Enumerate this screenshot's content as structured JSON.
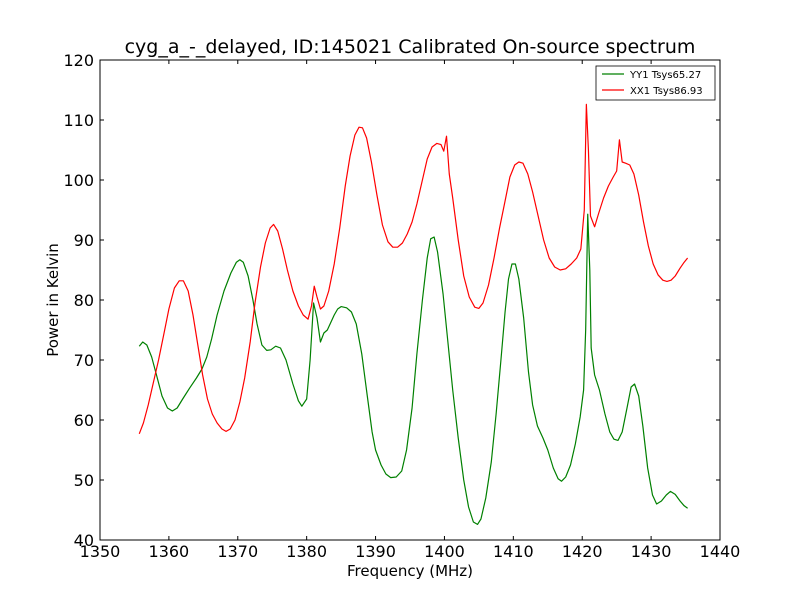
{
  "chart_data": {
    "type": "line",
    "title": "cyg_a_-_delayed, ID:145021 Calibrated On-source spectrum",
    "xlabel": "Frequency (MHz)",
    "ylabel": "Power in Kelvin",
    "xlim": [
      1350,
      1440
    ],
    "ylim": [
      40,
      120
    ],
    "xticks": [
      1350,
      1360,
      1370,
      1380,
      1390,
      1400,
      1410,
      1420,
      1430,
      1440
    ],
    "yticks": [
      40,
      50,
      60,
      70,
      80,
      90,
      100,
      110,
      120
    ],
    "legend_position": "top-right",
    "series": [
      {
        "name": "YY1 Tsys65.27",
        "color": "#008000",
        "points": [
          [
            1355.7,
            72.3
          ],
          [
            1356.2,
            73.0
          ],
          [
            1356.8,
            72.5
          ],
          [
            1357.5,
            70.5
          ],
          [
            1358.2,
            67.5
          ],
          [
            1359,
            64.0
          ],
          [
            1359.8,
            62.0
          ],
          [
            1360.5,
            61.5
          ],
          [
            1361.2,
            62.0
          ],
          [
            1362,
            63.5
          ],
          [
            1363,
            65.3
          ],
          [
            1364,
            67.0
          ],
          [
            1364.8,
            68.5
          ],
          [
            1365.5,
            70.5
          ],
          [
            1366.2,
            73.5
          ],
          [
            1367,
            77.5
          ],
          [
            1368,
            81.5
          ],
          [
            1369,
            84.5
          ],
          [
            1369.8,
            86.3
          ],
          [
            1370.3,
            86.7
          ],
          [
            1370.8,
            86.3
          ],
          [
            1371.5,
            84.0
          ],
          [
            1372.2,
            80.0
          ],
          [
            1372.8,
            76.0
          ],
          [
            1373.5,
            72.5
          ],
          [
            1374.2,
            71.6
          ],
          [
            1374.8,
            71.7
          ],
          [
            1375.5,
            72.3
          ],
          [
            1376.2,
            72.0
          ],
          [
            1377,
            70.0
          ],
          [
            1378,
            66.0
          ],
          [
            1378.8,
            63.2
          ],
          [
            1379.3,
            62.3
          ],
          [
            1380,
            63.5
          ],
          [
            1380.5,
            70.0
          ],
          [
            1381,
            79.5
          ],
          [
            1381.5,
            77.0
          ],
          [
            1382,
            73.0
          ],
          [
            1382.5,
            74.5
          ],
          [
            1383,
            75.0
          ],
          [
            1384,
            77.5
          ],
          [
            1384.5,
            78.5
          ],
          [
            1385,
            78.9
          ],
          [
            1385.8,
            78.7
          ],
          [
            1386.5,
            78.0
          ],
          [
            1387.2,
            76.0
          ],
          [
            1388,
            71.0
          ],
          [
            1388.8,
            64.0
          ],
          [
            1389.5,
            58.0
          ],
          [
            1390,
            55.0
          ],
          [
            1390.8,
            52.5
          ],
          [
            1391.5,
            51.0
          ],
          [
            1392.2,
            50.4
          ],
          [
            1393,
            50.5
          ],
          [
            1393.8,
            51.5
          ],
          [
            1394.5,
            55.0
          ],
          [
            1395.3,
            62.0
          ],
          [
            1396,
            71.0
          ],
          [
            1396.8,
            80.0
          ],
          [
            1397.5,
            87.0
          ],
          [
            1398,
            90.2
          ],
          [
            1398.5,
            90.5
          ],
          [
            1399,
            88.0
          ],
          [
            1399.8,
            81.0
          ],
          [
            1400.5,
            73.0
          ],
          [
            1401.2,
            65.0
          ],
          [
            1402,
            57.0
          ],
          [
            1402.8,
            50.0
          ],
          [
            1403.5,
            45.5
          ],
          [
            1404.2,
            43.0
          ],
          [
            1404.8,
            42.6
          ],
          [
            1405.3,
            43.5
          ],
          [
            1406,
            47.0
          ],
          [
            1406.8,
            53.0
          ],
          [
            1407.5,
            61.0
          ],
          [
            1408.2,
            70.0
          ],
          [
            1408.8,
            78.0
          ],
          [
            1409.3,
            83.5
          ],
          [
            1409.8,
            86.0
          ],
          [
            1410.3,
            86.0
          ],
          [
            1410.8,
            83.5
          ],
          [
            1411.5,
            77.0
          ],
          [
            1412.2,
            68.0
          ],
          [
            1412.8,
            62.5
          ],
          [
            1413.5,
            59.0
          ],
          [
            1414.3,
            57.0
          ],
          [
            1415,
            55.0
          ],
          [
            1415.8,
            52.0
          ],
          [
            1416.5,
            50.2
          ],
          [
            1417,
            49.8
          ],
          [
            1417.6,
            50.5
          ],
          [
            1418.3,
            52.5
          ],
          [
            1419,
            56.0
          ],
          [
            1419.7,
            60.5
          ],
          [
            1420.2,
            65.0
          ],
          [
            1420.5,
            75.0
          ],
          [
            1420.8,
            94.3
          ],
          [
            1421.1,
            85.0
          ],
          [
            1421.3,
            72.0
          ],
          [
            1421.8,
            67.5
          ],
          [
            1422.5,
            65.0
          ],
          [
            1423.3,
            61.0
          ],
          [
            1424,
            58.0
          ],
          [
            1424.6,
            56.8
          ],
          [
            1425.2,
            56.6
          ],
          [
            1425.8,
            58.0
          ],
          [
            1426.5,
            62.0
          ],
          [
            1427.1,
            65.5
          ],
          [
            1427.6,
            66.0
          ],
          [
            1428.2,
            64.0
          ],
          [
            1428.8,
            59.0
          ],
          [
            1429.5,
            52.0
          ],
          [
            1430.2,
            47.5
          ],
          [
            1430.8,
            46.0
          ],
          [
            1431.5,
            46.5
          ],
          [
            1432.2,
            47.5
          ],
          [
            1432.8,
            48.1
          ],
          [
            1433.5,
            47.6
          ],
          [
            1434.2,
            46.5
          ],
          [
            1434.8,
            45.7
          ],
          [
            1435.3,
            45.3
          ]
        ]
      },
      {
        "name": "XX1 Tsys86.93",
        "color": "#ff0000",
        "points": [
          [
            1355.7,
            57.7
          ],
          [
            1356.3,
            59.5
          ],
          [
            1357,
            62.5
          ],
          [
            1357.8,
            66.5
          ],
          [
            1358.5,
            70.0
          ],
          [
            1359.3,
            74.5
          ],
          [
            1360,
            78.5
          ],
          [
            1360.8,
            82.0
          ],
          [
            1361.5,
            83.2
          ],
          [
            1362.1,
            83.2
          ],
          [
            1362.8,
            81.5
          ],
          [
            1363.5,
            77.5
          ],
          [
            1364.2,
            72.5
          ],
          [
            1364.9,
            67.5
          ],
          [
            1365.6,
            63.5
          ],
          [
            1366.3,
            61.0
          ],
          [
            1367,
            59.5
          ],
          [
            1367.7,
            58.5
          ],
          [
            1368.3,
            58.1
          ],
          [
            1368.9,
            58.5
          ],
          [
            1369.6,
            60.0
          ],
          [
            1370.3,
            63.0
          ],
          [
            1371,
            67.0
          ],
          [
            1371.8,
            73.0
          ],
          [
            1372.5,
            79.5
          ],
          [
            1373.3,
            85.5
          ],
          [
            1374,
            89.5
          ],
          [
            1374.7,
            92.0
          ],
          [
            1375.2,
            92.6
          ],
          [
            1375.8,
            91.5
          ],
          [
            1376.5,
            88.5
          ],
          [
            1377.2,
            85.0
          ],
          [
            1378,
            81.5
          ],
          [
            1378.8,
            79.0
          ],
          [
            1379.5,
            77.5
          ],
          [
            1380.2,
            76.8
          ],
          [
            1380.7,
            79.0
          ],
          [
            1381.1,
            82.3
          ],
          [
            1381.5,
            80.5
          ],
          [
            1382,
            78.5
          ],
          [
            1382.5,
            79.0
          ],
          [
            1383.2,
            81.5
          ],
          [
            1384,
            86.0
          ],
          [
            1384.8,
            92.0
          ],
          [
            1385.6,
            99.0
          ],
          [
            1386.3,
            104.0
          ],
          [
            1387,
            107.5
          ],
          [
            1387.6,
            108.8
          ],
          [
            1388.1,
            108.7
          ],
          [
            1388.7,
            107.0
          ],
          [
            1389.4,
            103.0
          ],
          [
            1390.2,
            97.5
          ],
          [
            1391,
            92.5
          ],
          [
            1391.8,
            89.7
          ],
          [
            1392.5,
            88.8
          ],
          [
            1393.2,
            88.8
          ],
          [
            1393.9,
            89.5
          ],
          [
            1394.6,
            91.0
          ],
          [
            1395.3,
            93.0
          ],
          [
            1396,
            96.0
          ],
          [
            1396.8,
            100.0
          ],
          [
            1397.5,
            103.5
          ],
          [
            1398.2,
            105.5
          ],
          [
            1398.9,
            106.1
          ],
          [
            1399.5,
            105.9
          ],
          [
            1399.9,
            104.8
          ],
          [
            1400.3,
            107.3
          ],
          [
            1400.7,
            101.0
          ],
          [
            1401.2,
            97.0
          ],
          [
            1402,
            90.0
          ],
          [
            1402.8,
            84.0
          ],
          [
            1403.6,
            80.5
          ],
          [
            1404.4,
            78.8
          ],
          [
            1405,
            78.6
          ],
          [
            1405.6,
            79.5
          ],
          [
            1406.4,
            82.5
          ],
          [
            1407.2,
            87.0
          ],
          [
            1408,
            92.0
          ],
          [
            1408.8,
            96.5
          ],
          [
            1409.5,
            100.5
          ],
          [
            1410.2,
            102.5
          ],
          [
            1410.8,
            103.0
          ],
          [
            1411.4,
            102.8
          ],
          [
            1412.1,
            101.0
          ],
          [
            1412.8,
            98.0
          ],
          [
            1413.6,
            94.0
          ],
          [
            1414.4,
            90.0
          ],
          [
            1415.2,
            87.0
          ],
          [
            1416,
            85.5
          ],
          [
            1416.8,
            85.0
          ],
          [
            1417.6,
            85.2
          ],
          [
            1418.4,
            86.0
          ],
          [
            1419.2,
            87.0
          ],
          [
            1419.8,
            88.5
          ],
          [
            1420.3,
            95.0
          ],
          [
            1420.6,
            112.6
          ],
          [
            1420.9,
            105.0
          ],
          [
            1421.2,
            94.0
          ],
          [
            1421.8,
            92.2
          ],
          [
            1422.4,
            94.5
          ],
          [
            1423.1,
            97.0
          ],
          [
            1423.8,
            99.0
          ],
          [
            1424.5,
            100.5
          ],
          [
            1425,
            101.5
          ],
          [
            1425.4,
            106.7
          ],
          [
            1425.8,
            103.0
          ],
          [
            1426.3,
            102.8
          ],
          [
            1426.9,
            102.5
          ],
          [
            1427.5,
            101.0
          ],
          [
            1428.2,
            97.5
          ],
          [
            1428.9,
            93.0
          ],
          [
            1429.6,
            89.0
          ],
          [
            1430.3,
            86.0
          ],
          [
            1431,
            84.2
          ],
          [
            1431.7,
            83.3
          ],
          [
            1432.3,
            83.1
          ],
          [
            1432.9,
            83.3
          ],
          [
            1433.5,
            84.0
          ],
          [
            1434.2,
            85.3
          ],
          [
            1434.8,
            86.3
          ],
          [
            1435.3,
            87.0
          ]
        ]
      }
    ]
  }
}
